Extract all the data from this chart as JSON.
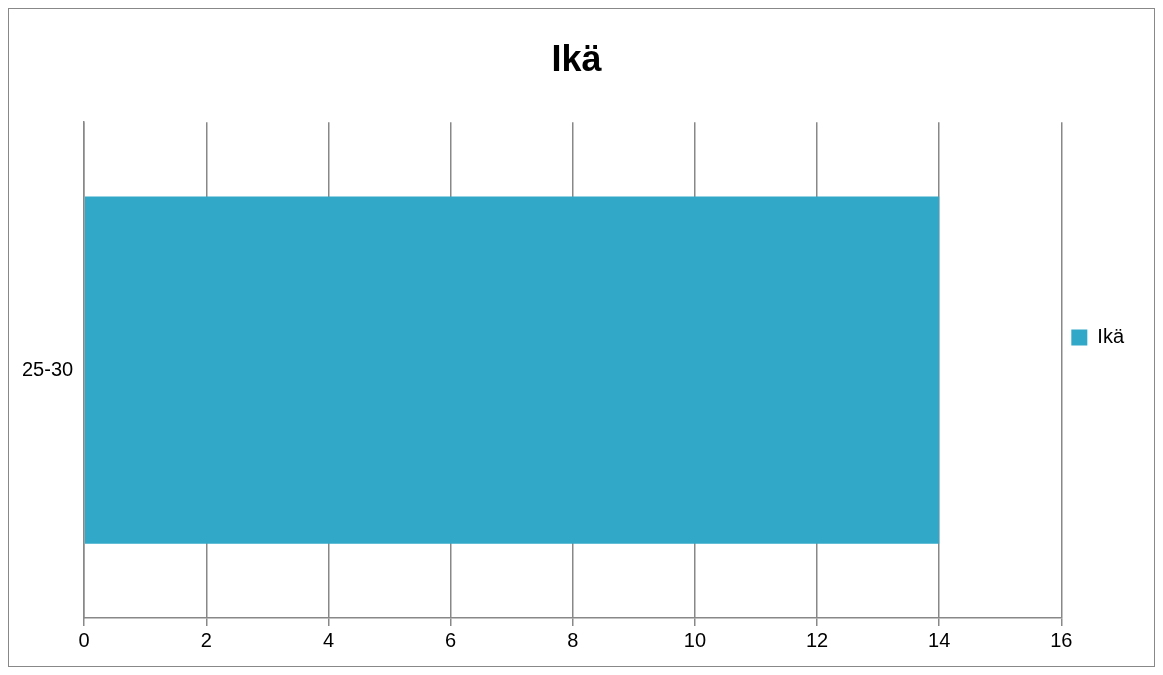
{
  "chart_data": {
    "type": "bar",
    "orientation": "horizontal",
    "title": "Ikä",
    "categories": [
      "25-30"
    ],
    "series": [
      {
        "name": "Ikä",
        "color": "#31a8c8",
        "values": [
          14
        ]
      }
    ],
    "xlim": [
      0,
      16
    ],
    "xticks": [
      0,
      2,
      4,
      6,
      8,
      10,
      12,
      14,
      16
    ],
    "grid": "x",
    "legend": "right"
  }
}
